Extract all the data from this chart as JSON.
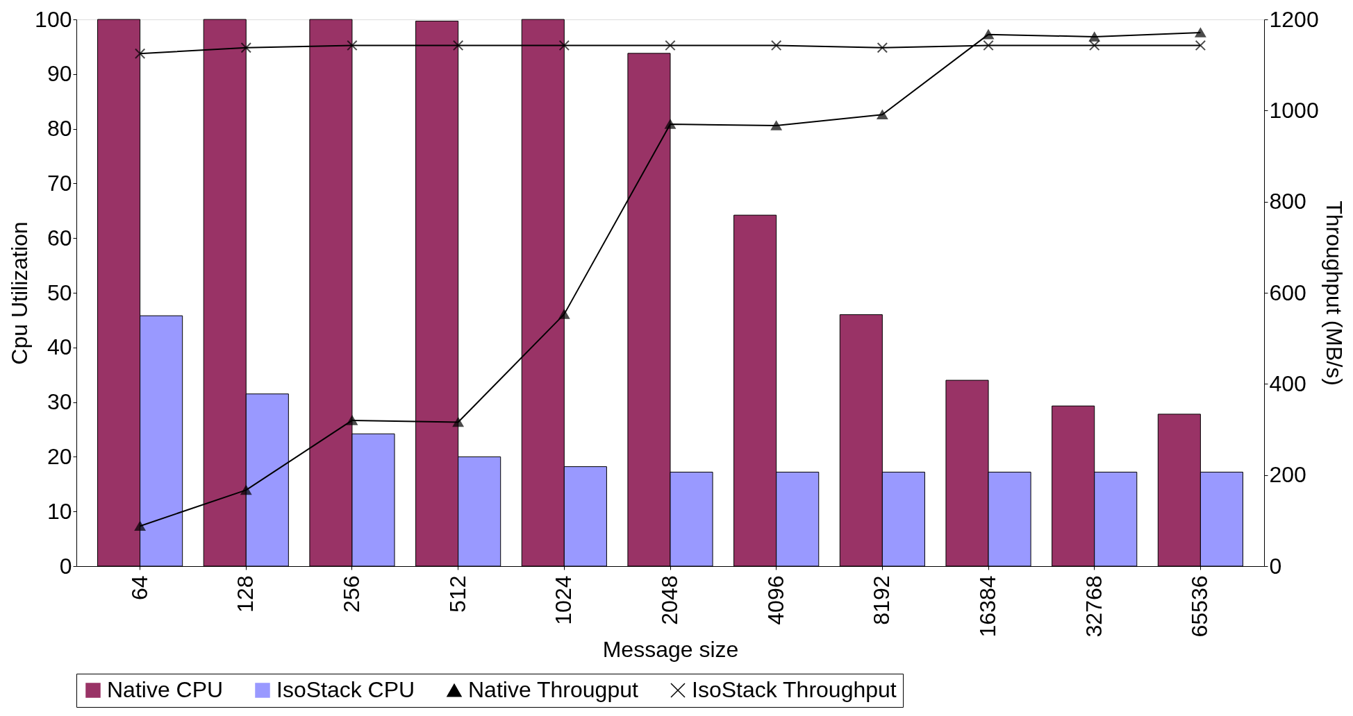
{
  "chart_data": {
    "type": "bar",
    "xlabel": "Message size",
    "ylabel": "Cpu Utilization",
    "y2label": "Throughput (MB/s)",
    "categories": [
      "64",
      "128",
      "256",
      "512",
      "1024",
      "2048",
      "4096",
      "8192",
      "16384",
      "32768",
      "65536"
    ],
    "series": [
      {
        "name": "Native CPU",
        "color": "#993366",
        "values": [
          100,
          100,
          100,
          99.7,
          100,
          93.8,
          64.2,
          46,
          34,
          29.3,
          27.8
        ]
      },
      {
        "name": "IsoStack CPU",
        "color": "#9999ff",
        "values": [
          45.8,
          31.5,
          24.2,
          20,
          18.2,
          17.2,
          17.2,
          17.2,
          17.2,
          17.2,
          17.2
        ]
      },
      {
        "name": "Native Througput",
        "type": "line",
        "axis": "y2",
        "color": "#000000",
        "marker": "triangle",
        "values": [
          88,
          167,
          320,
          316,
          553,
          970,
          967,
          991,
          1167,
          1162,
          1171
        ]
      },
      {
        "name": "IsoStack Throughput",
        "type": "line",
        "axis": "y2",
        "color": "#000000",
        "marker": "cross",
        "values": [
          1125,
          1138,
          1143,
          1143,
          1143,
          1143,
          1143,
          1138,
          1143,
          1143,
          1143
        ]
      }
    ],
    "ylim": [
      0,
      100
    ],
    "yticks": [
      0,
      10,
      20,
      30,
      40,
      50,
      60,
      70,
      80,
      90,
      100
    ],
    "y2lim": [
      0,
      1200
    ],
    "y2ticks": [
      0,
      200,
      400,
      600,
      800,
      1000,
      1200
    ],
    "legend": "bottom",
    "grid": false
  }
}
